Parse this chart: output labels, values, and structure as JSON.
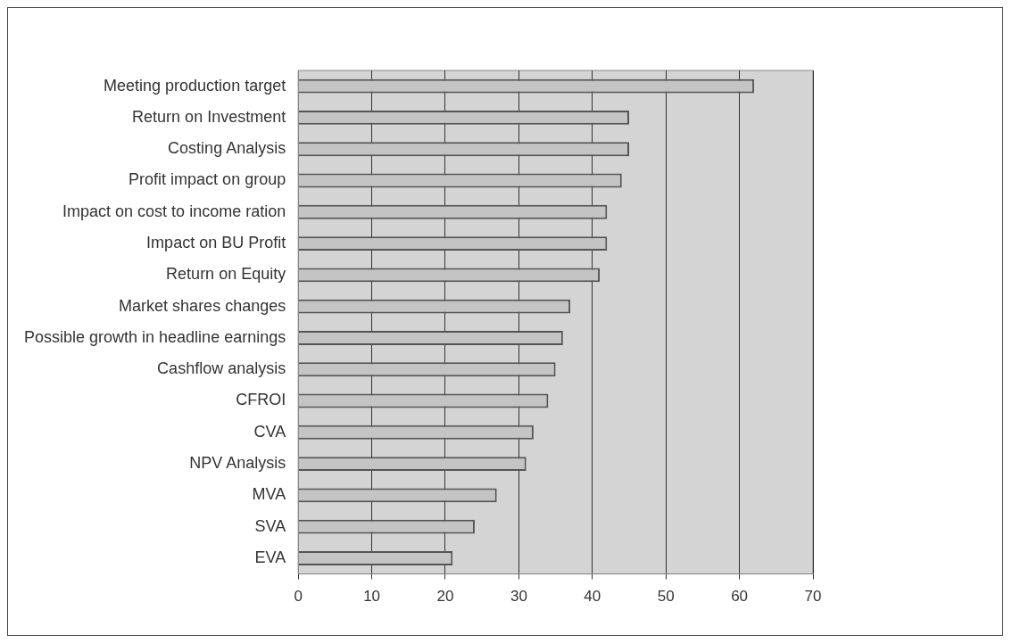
{
  "chart_data": {
    "type": "bar",
    "orientation": "horizontal",
    "categories": [
      "Meeting production target",
      "Return on Investment",
      "Costing Analysis",
      "Profit impact on group",
      "Impact on cost to income ration",
      "Impact on BU Profit",
      "Return on Equity",
      "Market shares changes",
      "Possible growth in headline earnings",
      "Cashflow analysis",
      "CFROI",
      "CVA",
      "NPV Analysis",
      "MVA",
      "SVA",
      "EVA"
    ],
    "values": [
      62,
      45,
      45,
      44,
      42,
      42,
      41,
      37,
      36,
      35,
      34,
      32,
      31,
      27,
      24,
      21
    ],
    "color": "#c4c4c4",
    "xlim": [
      0,
      70
    ],
    "xticks": [
      0,
      10,
      20,
      30,
      40,
      50,
      60,
      70
    ],
    "grid": "x"
  }
}
